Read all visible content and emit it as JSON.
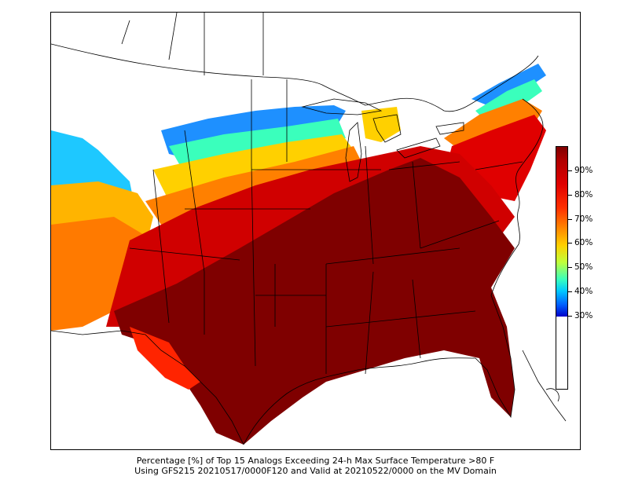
{
  "caption": {
    "line1": "Percentage [%] of Top 15 Analogs Exceeding 24-h Max Surface Temperature >80 F",
    "line2": "Using GFS215 20210517/0000F120 and Valid at 20210522/0000 on the MV Domain"
  },
  "colorbar": {
    "ticks": [
      {
        "label": "90%",
        "value": 90
      },
      {
        "label": "80%",
        "value": 80
      },
      {
        "label": "70%",
        "value": 70
      },
      {
        "label": "60%",
        "value": 60
      },
      {
        "label": "50%",
        "value": 50
      },
      {
        "label": "40%",
        "value": 40
      },
      {
        "label": "30%",
        "value": 30
      }
    ],
    "min": 30,
    "max": 100,
    "colors": {
      "max": "#7f0000",
      "high": "#e00000",
      "mid_high": "#ff8000",
      "mid": "#ffd000",
      "mid_low": "#3affbc",
      "low": "#0000c8"
    }
  },
  "map": {
    "domain": "MV Domain",
    "colors": {
      "dark_red": "#7f0000",
      "red": "#d00000",
      "orange_red": "#ff3000",
      "orange": "#ff8000",
      "yellow": "#ffd000",
      "cyan": "#3affbc",
      "blue": "#0060ff"
    }
  }
}
